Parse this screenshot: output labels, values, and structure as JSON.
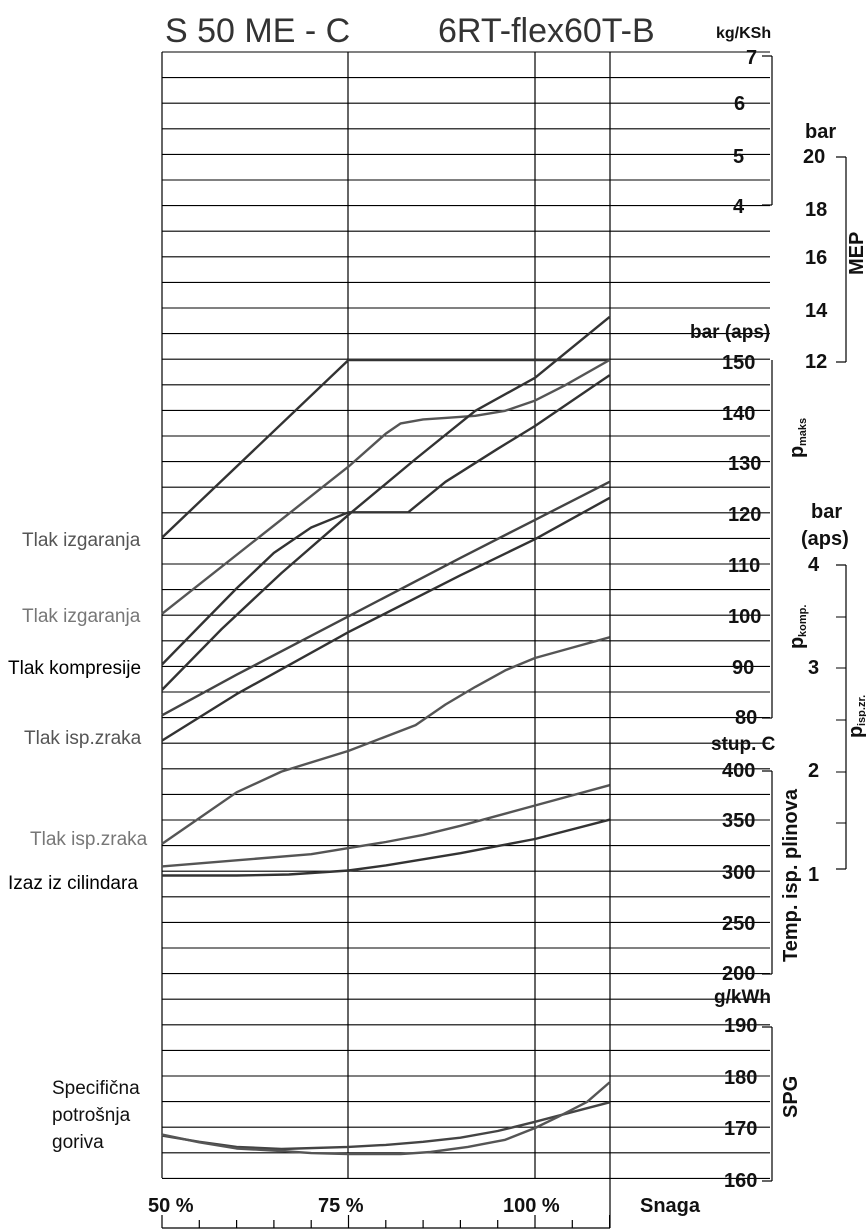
{
  "chart_data": {
    "type": "line",
    "title_left": "S 50 ME - C",
    "title_right": "6RT-flex60T-B",
    "x_axis": {
      "label": "Snaga",
      "ticks": [
        "50 %",
        "75 %",
        "100 %"
      ],
      "range_percent": [
        50,
        110
      ]
    },
    "axes": {
      "mep": {
        "title": "MEP",
        "unit_kgksh": "kg/KSh",
        "kgksh_ticks": [
          "7",
          "6",
          "5",
          "4"
        ],
        "unit_bar": "bar",
        "bar_ticks": [
          "20",
          "18",
          "16",
          "14",
          "12"
        ]
      },
      "pmax": {
        "title": "p",
        "title_sub": "maks",
        "unit": "bar (aps)",
        "ticks": [
          "150",
          "140",
          "130",
          "120",
          "110",
          "100",
          "90",
          "80"
        ]
      },
      "pkomp": {
        "title": "p",
        "title_sub": "komp."
      },
      "pisp": {
        "title": "p",
        "title_sub": "isp.zr.",
        "unit": "bar\n(aps)",
        "unit_line1": "bar",
        "unit_line2": "(aps)",
        "ticks": [
          "4",
          "3",
          "2",
          "1"
        ]
      },
      "temp": {
        "title": "Temp. isp. plinova",
        "unit": "stup. C",
        "ticks": [
          "400",
          "350",
          "300",
          "250",
          "200"
        ]
      },
      "spg": {
        "title": "SPG",
        "unit": "g/kWh",
        "ticks": [
          "190",
          "180",
          "170",
          "160"
        ]
      }
    },
    "left_labels": {
      "tlak_izgaranja_1": "Tlak izgaranja",
      "tlak_izgaranja_2": "Tlak izgaranja",
      "tlak_kompresije": "Tlak kompresije",
      "tlak_isp_zraka_1": "Tlak isp.zraka",
      "tlak_isp_zraka_2": "Tlak isp.zraka",
      "izaz_iz_cilindara": "Izaz iz cilindara",
      "spec_1": "Specifična",
      "spec_2": "potrošnja",
      "spec_3": "goriva"
    },
    "series": [
      {
        "key": "pmax_a",
        "color": "#333333",
        "axis": "pmax",
        "points": [
          [
            50,
            115
          ],
          [
            75,
            150
          ],
          [
            110,
            150
          ]
        ]
      },
      {
        "key": "pmax_b",
        "color": "#555555",
        "axis": "pmax",
        "points": [
          [
            50,
            100
          ],
          [
            75,
            129
          ],
          [
            80,
            135.5
          ],
          [
            82,
            137.5
          ],
          [
            85,
            138.3
          ],
          [
            88,
            138.6
          ],
          [
            92,
            139
          ],
          [
            96,
            140
          ],
          [
            100,
            142
          ],
          [
            104,
            145
          ],
          [
            110,
            150
          ]
        ]
      },
      {
        "key": "pmax_pkomp_a",
        "color": "#333333",
        "axis": "pmax",
        "points": [
          [
            50,
            90
          ],
          [
            55,
            97.5
          ],
          [
            60,
            105
          ],
          [
            65,
            112
          ],
          [
            70,
            117
          ],
          [
            75,
            120
          ],
          [
            83,
            120
          ],
          [
            88,
            126
          ],
          [
            95,
            132.5
          ],
          [
            100,
            137
          ],
          [
            110,
            147
          ]
        ]
      },
      {
        "key": "pmax_pkomp_b",
        "color": "#333333",
        "axis": "pmax",
        "points": [
          [
            50,
            85
          ],
          [
            58,
            97
          ],
          [
            66,
            108
          ],
          [
            75,
            119.5
          ],
          [
            84,
            130.5
          ],
          [
            92,
            140
          ],
          [
            100,
            146.5
          ],
          [
            110,
            158.5
          ]
        ]
      },
      {
        "key": "pkomp_a",
        "color": "#444444",
        "axis": "pmax",
        "points": [
          [
            50,
            80
          ],
          [
            60,
            88
          ],
          [
            75,
            99.5
          ],
          [
            90,
            111
          ],
          [
            100,
            118.5
          ],
          [
            110,
            126
          ]
        ]
      },
      {
        "key": "pisp_a",
        "color": "#333333",
        "axis": "pisp",
        "points": [
          [
            50,
            2.3
          ],
          [
            60,
            2.75
          ],
          [
            75,
            3.35
          ],
          [
            90,
            3.9
          ],
          [
            100,
            4.25
          ],
          [
            110,
            4.65
          ]
        ]
      },
      {
        "key": "pisp_b",
        "color": "#555555",
        "axis": "pisp",
        "points": [
          [
            50,
            1.3
          ],
          [
            55,
            1.55
          ],
          [
            60,
            1.8
          ],
          [
            66,
            2.0
          ],
          [
            75,
            2.2
          ],
          [
            84,
            2.45
          ],
          [
            88,
            2.65
          ],
          [
            92,
            2.82
          ],
          [
            96,
            2.98
          ],
          [
            100,
            3.1
          ],
          [
            105,
            3.2
          ],
          [
            110,
            3.3
          ]
        ]
      },
      {
        "key": "temp_a",
        "color": "#555555",
        "axis": "temp",
        "points": [
          [
            50,
            306
          ],
          [
            60,
            312
          ],
          [
            70,
            318
          ],
          [
            75,
            324
          ],
          [
            80,
            330
          ],
          [
            85,
            337
          ],
          [
            90,
            346
          ],
          [
            95,
            356
          ],
          [
            100,
            366
          ],
          [
            110,
            386
          ]
        ]
      },
      {
        "key": "temp_b",
        "color": "#333333",
        "axis": "temp",
        "points": [
          [
            50,
            297
          ],
          [
            60,
            297
          ],
          [
            67,
            298
          ],
          [
            75,
            302
          ],
          [
            80,
            307
          ],
          [
            85,
            313
          ],
          [
            90,
            319
          ],
          [
            95,
            326
          ],
          [
            100,
            333
          ],
          [
            110,
            352
          ]
        ]
      },
      {
        "key": "spg_a",
        "color": "#444444",
        "axis": "spg",
        "points": [
          [
            50,
            168.8
          ],
          [
            55,
            167.6
          ],
          [
            60,
            166.6
          ],
          [
            66,
            166.2
          ],
          [
            75,
            166.6
          ],
          [
            80,
            167
          ],
          [
            85,
            167.6
          ],
          [
            90,
            168.4
          ],
          [
            95,
            169.7
          ],
          [
            100,
            171.5
          ],
          [
            110,
            175.3
          ]
        ]
      },
      {
        "key": "spg_b",
        "color": "#555555",
        "axis": "spg",
        "points": [
          [
            50,
            169
          ],
          [
            55,
            167.5
          ],
          [
            60,
            166.3
          ],
          [
            66,
            165.8
          ],
          [
            70,
            165.4
          ],
          [
            75,
            165.2
          ],
          [
            82,
            165.2
          ],
          [
            86,
            165.6
          ],
          [
            91,
            166.6
          ],
          [
            96,
            168
          ],
          [
            100,
            170.3
          ],
          [
            103,
            172.4
          ],
          [
            107,
            175.4
          ],
          [
            110,
            179.2
          ]
        ]
      }
    ],
    "grid": true
  }
}
